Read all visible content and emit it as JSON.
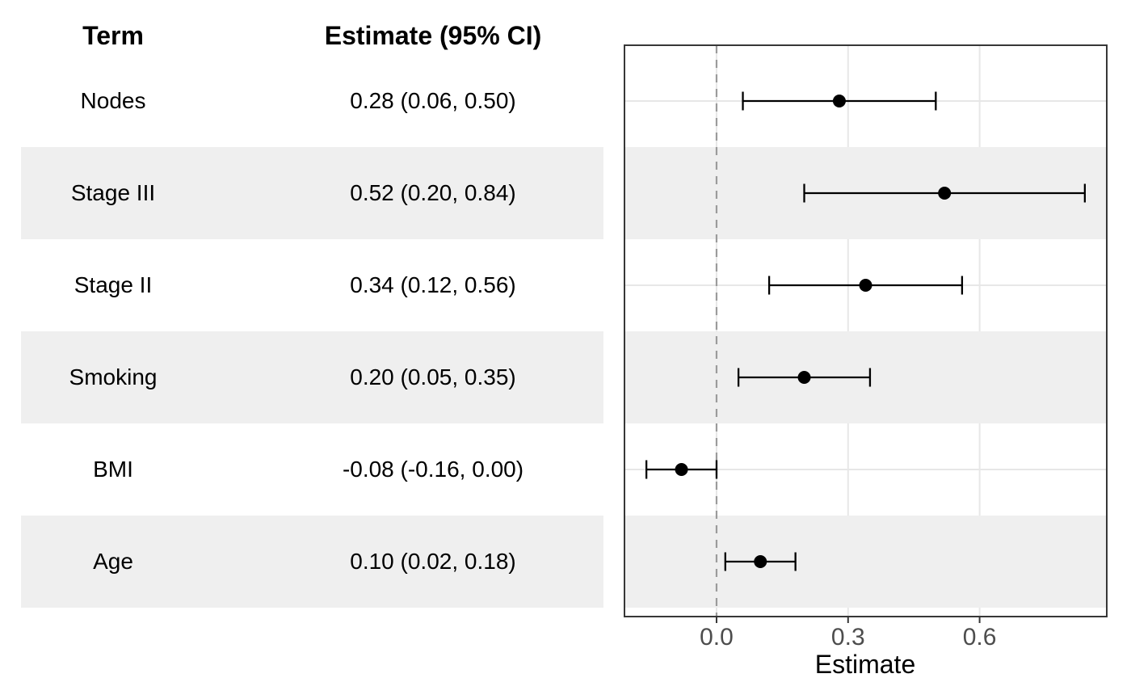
{
  "table": {
    "term_header": "Term",
    "estimate_header": "Estimate (95% CI)",
    "rows": [
      {
        "term": "Nodes",
        "estimate_ci": "0.28 (0.06, 0.50)"
      },
      {
        "term": "Stage III",
        "estimate_ci": "0.52 (0.20, 0.84)"
      },
      {
        "term": "Stage II",
        "estimate_ci": "0.34 (0.12, 0.56)"
      },
      {
        "term": "Smoking",
        "estimate_ci": "0.20 (0.05, 0.35)"
      },
      {
        "term": "BMI",
        "estimate_ci": "-0.08 (-0.16, 0.00)"
      },
      {
        "term": "Age",
        "estimate_ci": "0.10 (0.02, 0.18)"
      }
    ]
  },
  "chart_data": {
    "type": "scatter",
    "subtype": "forest-plot-with-error-bars",
    "title": "",
    "xlabel": "Estimate",
    "ylabel": "",
    "categories": [
      "Nodes",
      "Stage III",
      "Stage II",
      "Smoking",
      "BMI",
      "Age"
    ],
    "series": [
      {
        "name": "Estimate (95% CI)",
        "values": [
          0.28,
          0.52,
          0.34,
          0.2,
          -0.08,
          0.1
        ],
        "ci_low": [
          0.06,
          0.2,
          0.12,
          0.05,
          -0.16,
          0.02
        ],
        "ci_high": [
          0.5,
          0.84,
          0.56,
          0.35,
          0.0,
          0.18
        ]
      }
    ],
    "xlim": [
      -0.21,
      0.89
    ],
    "x_ticks": [
      {
        "value": 0.0,
        "label": "0.0"
      },
      {
        "value": 0.3,
        "label": "0.3"
      },
      {
        "value": 0.6,
        "label": "0.6"
      }
    ],
    "reference_line": {
      "value": 0,
      "style": "dashed"
    },
    "grid": "major",
    "legend": "none",
    "striped_rows": "alternating (2nd, 4th, 6th rows shaded)"
  },
  "colors": {
    "background": "#ffffff",
    "stripe": "#efefef",
    "gridline": "#e7e7e7",
    "panel_border": "#373737",
    "tick_mark": "#373737",
    "reference_line": "#9b9b9b",
    "error_bar": "#000000",
    "marker": "#000000",
    "tick_label_text": "#4d4d4d",
    "text": "#000000"
  }
}
